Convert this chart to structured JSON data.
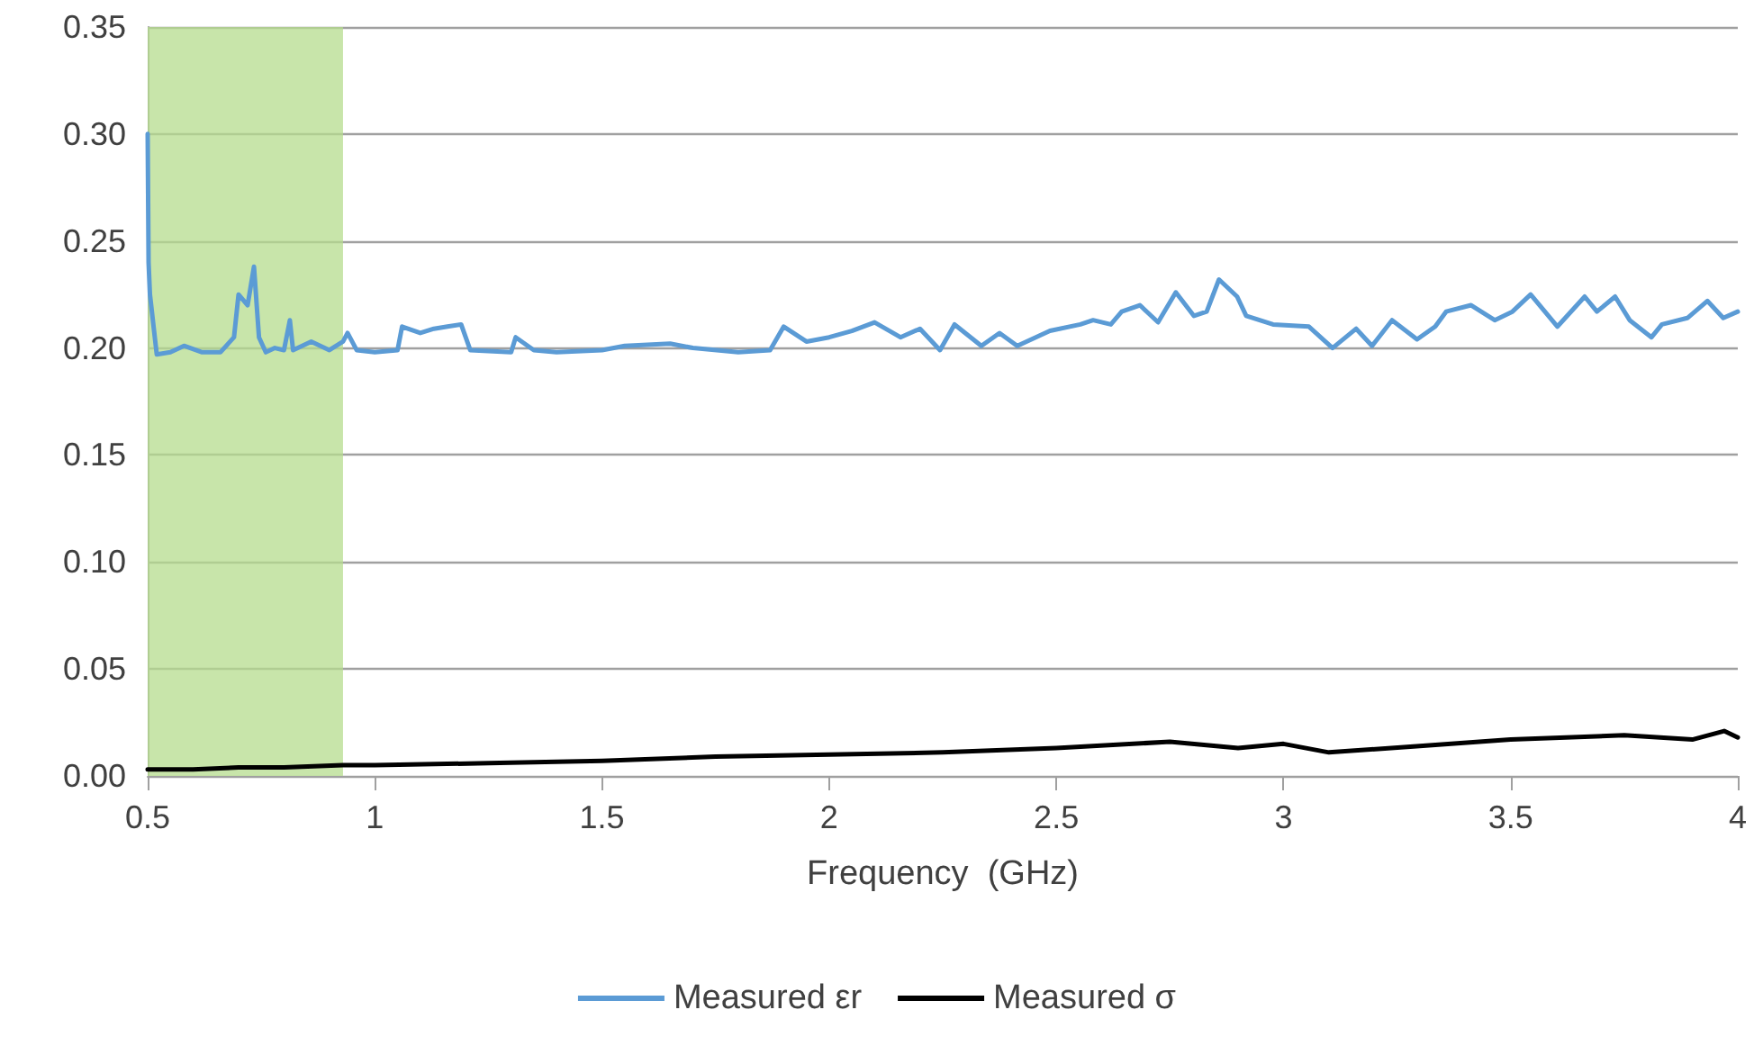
{
  "chart_data": {
    "type": "line",
    "xlabel": "Frequency  (GHz)",
    "xlim": [
      0.5,
      4
    ],
    "xticks": [
      0.5,
      1,
      1.5,
      2,
      2.5,
      3,
      3.5,
      4
    ],
    "ylim": [
      0,
      0.35
    ],
    "yticks": [
      {
        "value": 0,
        "label": "0.00"
      },
      {
        "value": 0.05,
        "label": "0.05"
      },
      {
        "value": 0.1,
        "label": "0.10"
      },
      {
        "value": 0.15,
        "label": "0.15"
      },
      {
        "value": 0.2,
        "label": "0.20"
      },
      {
        "value": 0.25,
        "label": "0.25"
      },
      {
        "value": 0.3,
        "label": "0.30"
      },
      {
        "value": 0.35,
        "label": "0.35"
      }
    ],
    "grid": "y",
    "legend": "bottom",
    "marker": "none",
    "line_style": "solid",
    "bands": [
      {
        "axis": "x",
        "from": 0.5,
        "to": 0.93,
        "label": null,
        "color": "#b5dc8e"
      }
    ],
    "series": [
      {
        "name": "Measured εr",
        "color": "#5b9bd5",
        "x": [
          0.5,
          0.502,
          0.505,
          0.52,
          0.55,
          0.58,
          0.62,
          0.66,
          0.69,
          0.7,
          0.72,
          0.734,
          0.745,
          0.76,
          0.78,
          0.8,
          0.813,
          0.82,
          0.86,
          0.9,
          0.93,
          0.94,
          0.96,
          1.0,
          1.05,
          1.06,
          1.1,
          1.13,
          1.16,
          1.19,
          1.21,
          1.3,
          1.31,
          1.35,
          1.4,
          1.5,
          1.55,
          1.65,
          1.7,
          1.8,
          1.87,
          1.9,
          1.95,
          2.0,
          2.05,
          2.1,
          2.157,
          2.2,
          2.244,
          2.276,
          2.335,
          2.375,
          2.414,
          2.486,
          2.553,
          2.581,
          2.62,
          2.644,
          2.684,
          2.724,
          2.763,
          2.803,
          2.831,
          2.858,
          2.898,
          2.918,
          2.977,
          3.056,
          3.108,
          3.16,
          3.195,
          3.239,
          3.294,
          3.334,
          3.358,
          3.413,
          3.465,
          3.504,
          3.544,
          3.603,
          3.663,
          3.69,
          3.73,
          3.762,
          3.81,
          3.833,
          3.889,
          3.933,
          3.968,
          4.0
        ],
        "values": [
          0.3,
          0.24,
          0.225,
          0.197,
          0.198,
          0.201,
          0.198,
          0.198,
          0.205,
          0.225,
          0.22,
          0.238,
          0.205,
          0.198,
          0.2,
          0.199,
          0.213,
          0.199,
          0.203,
          0.199,
          0.203,
          0.207,
          0.199,
          0.198,
          0.199,
          0.21,
          0.207,
          0.209,
          0.21,
          0.211,
          0.199,
          0.198,
          0.205,
          0.199,
          0.198,
          0.199,
          0.201,
          0.202,
          0.2,
          0.198,
          0.199,
          0.21,
          0.203,
          0.205,
          0.208,
          0.212,
          0.205,
          0.209,
          0.199,
          0.211,
          0.201,
          0.207,
          0.201,
          0.208,
          0.211,
          0.213,
          0.211,
          0.217,
          0.22,
          0.212,
          0.226,
          0.215,
          0.217,
          0.232,
          0.224,
          0.215,
          0.211,
          0.21,
          0.2,
          0.209,
          0.201,
          0.213,
          0.204,
          0.21,
          0.217,
          0.22,
          0.213,
          0.217,
          0.225,
          0.21,
          0.224,
          0.217,
          0.224,
          0.213,
          0.205,
          0.211,
          0.214,
          0.222,
          0.214,
          0.217
        ]
      },
      {
        "name": "Measured σ",
        "color": "#000000",
        "x": [
          0.5,
          0.6,
          0.7,
          0.8,
          0.93,
          1.0,
          1.25,
          1.5,
          1.75,
          2.0,
          2.25,
          2.5,
          2.75,
          2.9,
          3.0,
          3.1,
          3.3,
          3.5,
          3.75,
          3.9,
          3.97,
          4.0
        ],
        "values": [
          0.003,
          0.003,
          0.004,
          0.004,
          0.005,
          0.005,
          0.006,
          0.007,
          0.009,
          0.01,
          0.011,
          0.013,
          0.016,
          0.013,
          0.015,
          0.011,
          0.014,
          0.017,
          0.019,
          0.017,
          0.021,
          0.018
        ]
      }
    ]
  }
}
